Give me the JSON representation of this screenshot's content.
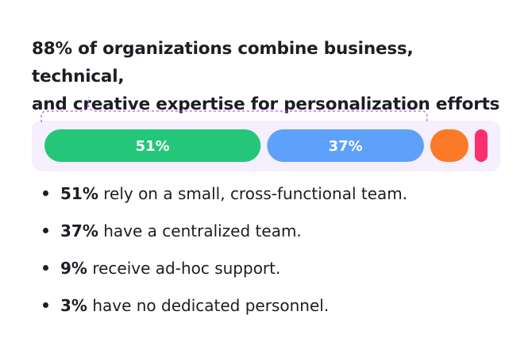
{
  "title_line1": "88% of organizations combine business, technical,",
  "title_line2": "and creative expertise for personalization efforts",
  "chart_data": {
    "type": "bar",
    "orientation": "horizontal-stacked",
    "title": "88% of organizations combine business, technical, and creative expertise for personalization efforts",
    "categories": [
      "Small, cross-functional team",
      "Centralized team",
      "Ad-hoc support",
      "No dedicated personnel"
    ],
    "values": [
      51,
      37,
      9,
      3
    ],
    "data_labels": [
      "51%",
      "37%",
      "",
      ""
    ],
    "colors": [
      "#24c77a",
      "#5ea1fb",
      "#fb7a27",
      "#fb2f6e"
    ],
    "track_color": "#f6effd",
    "bracket": {
      "covers": [
        "51%",
        "37%"
      ],
      "color": "#b558ea",
      "style": "dashed"
    }
  },
  "bullets": [
    {
      "value": "51%",
      "text": " rely on a small, cross-functional team."
    },
    {
      "value": "37%",
      "text": " have a centralized team."
    },
    {
      "value": "9%",
      "text": " receive ad-hoc support."
    },
    {
      "value": "3%",
      "text": " have no dedicated personnel."
    }
  ]
}
